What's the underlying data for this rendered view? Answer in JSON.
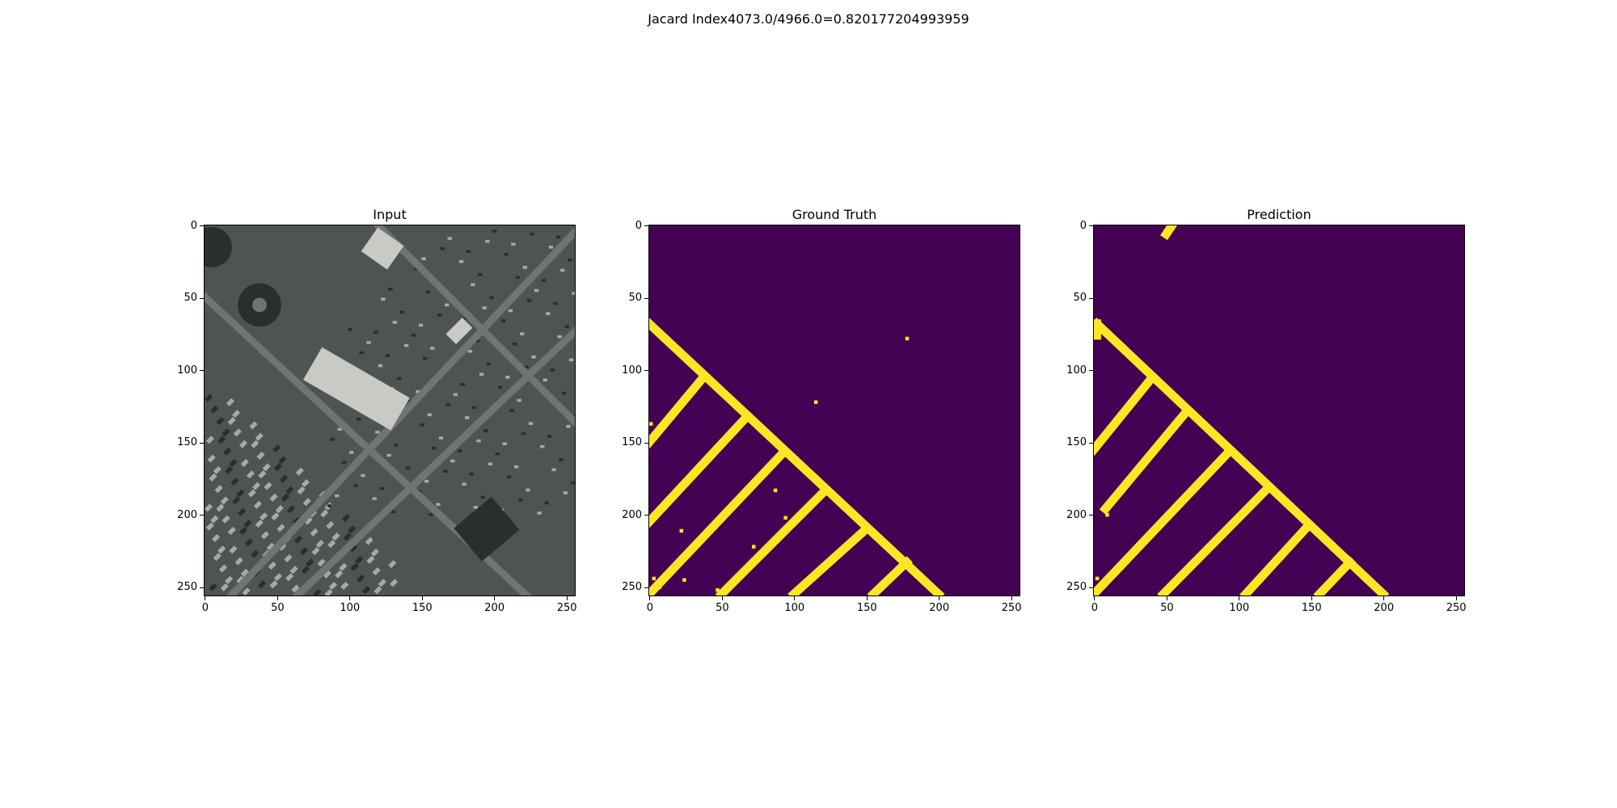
{
  "figure": {
    "suptitle": "Jacard Index4073.0/4966.0=0.820177204993959"
  },
  "chart_data": [
    {
      "type": "heatmap",
      "title": "Input",
      "description_kind": "rgb-image",
      "xlim": [
        0,
        255
      ],
      "ylim": [
        255,
        0
      ],
      "xticks": [
        0,
        50,
        100,
        150,
        200,
        250
      ],
      "yticks": [
        0,
        50,
        100,
        150,
        200,
        250
      ],
      "xtick_labels": [
        "0",
        "50",
        "100",
        "150",
        "200",
        "250"
      ],
      "ytick_labels": [
        "0",
        "50",
        "100",
        "150",
        "200",
        "250"
      ],
      "colors": {
        "background": "#4d5452",
        "road": "#6f7573",
        "roof": "#c9c9c6",
        "dark": "#2a2f2d",
        "house": "#a7a9a6"
      },
      "roads": [
        {
          "from": [
            -10,
            40
          ],
          "to": [
            270,
            300
          ]
        },
        {
          "from": [
            110,
            -10
          ],
          "to": [
            270,
            150
          ]
        },
        {
          "from": [
            60,
            260
          ],
          "to": [
            270,
            60
          ]
        },
        {
          "from": [
            10,
            265
          ],
          "to": [
            265,
            -5
          ]
        }
      ],
      "buildings": [
        {
          "x": [
            90,
            110
          ],
          "y": [
            70,
            140
          ],
          "angle": 45,
          "w": 28,
          "h": 70,
          "color": "roof"
        },
        {
          "x": [
            125,
            15
          ],
          "w": 26,
          "h": 18,
          "color": "roof"
        },
        {
          "x": [
            40,
            50
          ],
          "w": 32,
          "h": 32,
          "color": "dark",
          "shape": "circle"
        },
        {
          "x": [
            220,
            210
          ],
          "w": 40,
          "h": 34,
          "color": "dark"
        },
        {
          "x": [
            180,
            75
          ],
          "w": 20,
          "h": 12,
          "color": "roof"
        }
      ]
    },
    {
      "type": "heatmap",
      "title": "Ground Truth",
      "colormap": "viridis-binary",
      "colors": {
        "background": "#440154",
        "road": "#fde725"
      },
      "xlim": [
        0,
        255
      ],
      "ylim": [
        255,
        0
      ],
      "xticks": [
        0,
        50,
        100,
        150,
        200,
        250
      ],
      "yticks": [
        0,
        50,
        100,
        150,
        200,
        250
      ],
      "xtick_labels": [
        "0",
        "50",
        "100",
        "150",
        "200",
        "250"
      ],
      "ytick_labels": [
        "0",
        "50",
        "100",
        "150",
        "200",
        "250"
      ],
      "road_width": 6,
      "segments": [
        {
          "from": [
            0,
            68
          ],
          "to": [
            200,
            255
          ]
        },
        {
          "from": [
            0,
            150
          ],
          "to": [
            35,
            108
          ]
        },
        {
          "from": [
            0,
            205
          ],
          "to": [
            65,
            135
          ]
        },
        {
          "from": [
            0,
            255
          ],
          "to": [
            90,
            160
          ]
        },
        {
          "from": [
            50,
            255
          ],
          "to": [
            120,
            185
          ]
        },
        {
          "from": [
            100,
            255
          ],
          "to": [
            150,
            210
          ]
        },
        {
          "from": [
            155,
            255
          ],
          "to": [
            178,
            233
          ]
        }
      ],
      "specks": [
        [
          178,
          78
        ],
        [
          115,
          122
        ],
        [
          1,
          137
        ],
        [
          87,
          183
        ],
        [
          94,
          202
        ],
        [
          22,
          211
        ],
        [
          72,
          222
        ],
        [
          24,
          245
        ],
        [
          47,
          252
        ],
        [
          7,
          250
        ],
        [
          3,
          244
        ]
      ]
    },
    {
      "type": "heatmap",
      "title": "Prediction",
      "colormap": "viridis-binary",
      "colors": {
        "background": "#440154",
        "road": "#fde725"
      },
      "xlim": [
        0,
        255
      ],
      "ylim": [
        255,
        0
      ],
      "xticks": [
        0,
        50,
        100,
        150,
        200,
        250
      ],
      "yticks": [
        0,
        50,
        100,
        150,
        200,
        250
      ],
      "xtick_labels": [
        "0",
        "50",
        "100",
        "150",
        "200",
        "250"
      ],
      "ytick_labels": [
        "0",
        "50",
        "100",
        "150",
        "200",
        "250"
      ],
      "road_width": 6,
      "segments": [
        {
          "from": [
            2,
            68
          ],
          "to": [
            200,
            255
          ]
        },
        {
          "from": [
            2,
            68
          ],
          "to": [
            2,
            76
          ]
        },
        {
          "from": [
            0,
            155
          ],
          "to": [
            38,
            108
          ]
        },
        {
          "from": [
            8,
            196
          ],
          "to": [
            63,
            130
          ]
        },
        {
          "from": [
            0,
            255
          ],
          "to": [
            92,
            158
          ]
        },
        {
          "from": [
            48,
            255
          ],
          "to": [
            120,
            182
          ]
        },
        {
          "from": [
            105,
            255
          ],
          "to": [
            148,
            208
          ]
        },
        {
          "from": [
            156,
            255
          ],
          "to": [
            177,
            233
          ]
        },
        {
          "from": [
            50,
            6
          ],
          "to": [
            54,
            0
          ]
        }
      ],
      "specks": [
        [
          9,
          200
        ],
        [
          2,
          244
        ],
        [
          4,
          250
        ]
      ]
    }
  ]
}
